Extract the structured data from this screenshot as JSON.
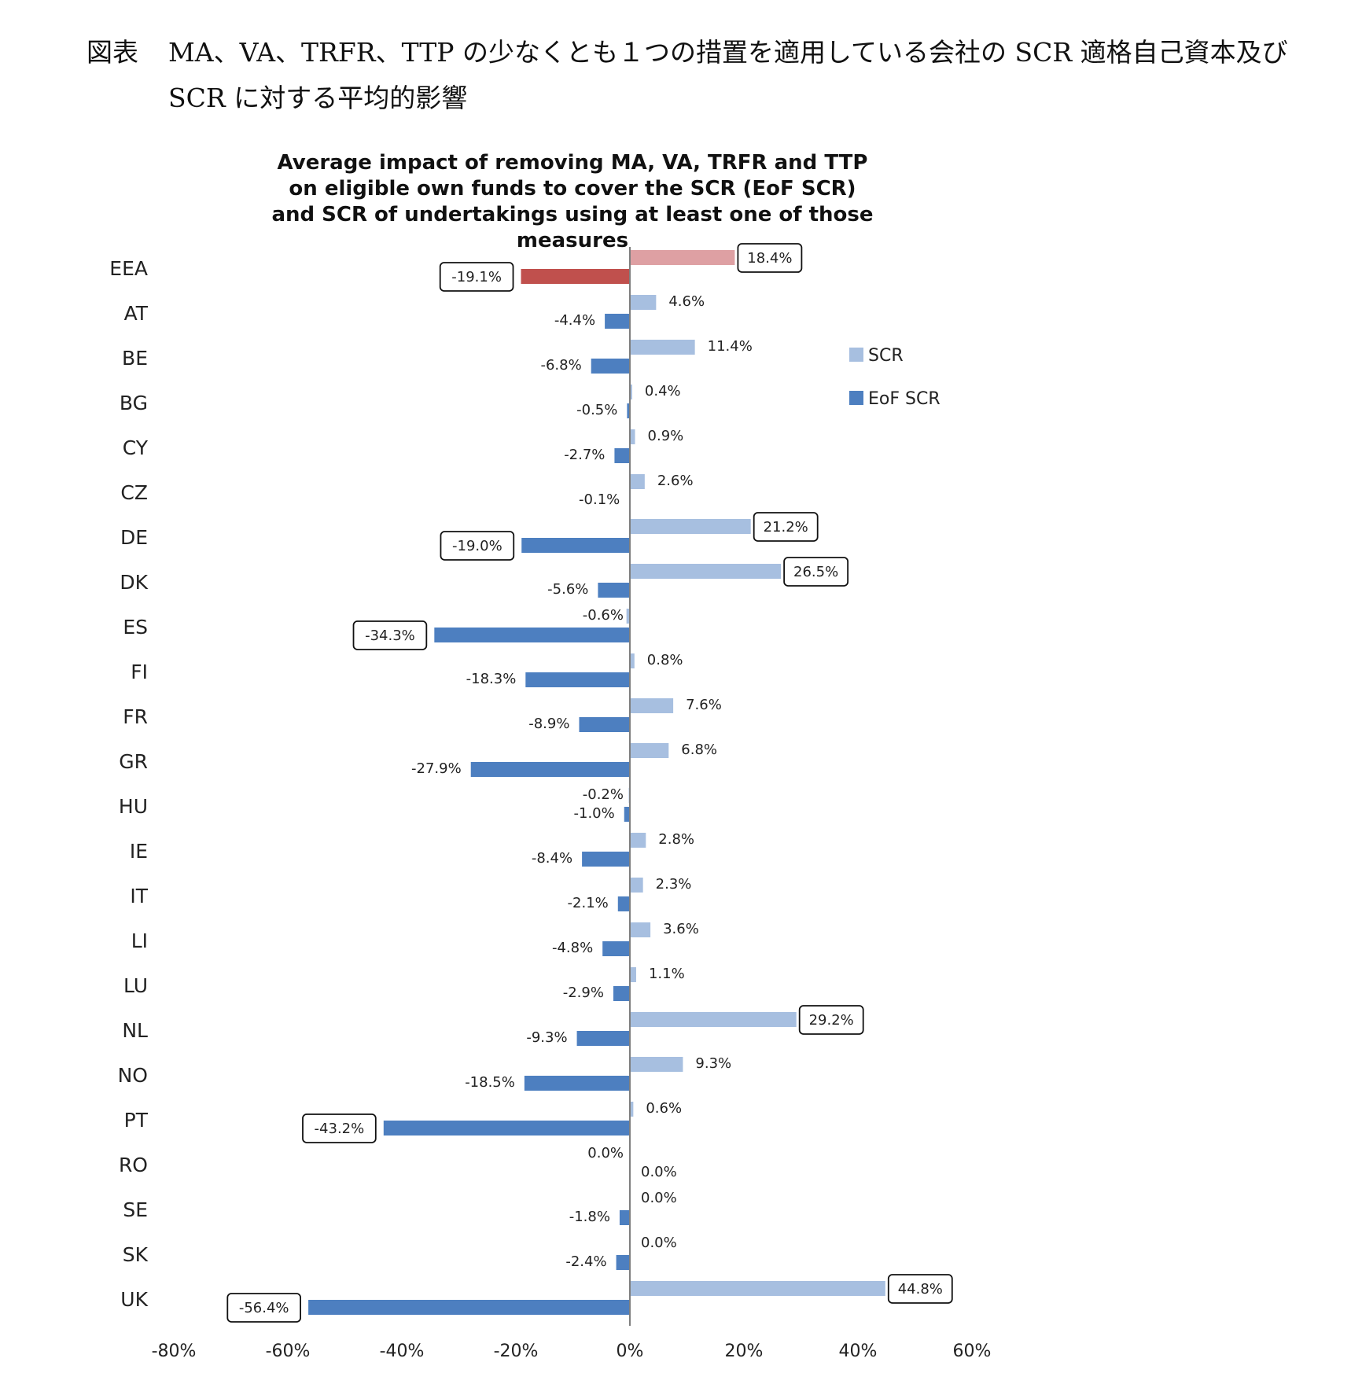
{
  "caption": {
    "label": "図表",
    "text": "MA、VA、TRFR、TTP の少なくとも１つの措置を適用している会社の SCR 適格自己資本及び SCR に対する平均的影響"
  },
  "chart_data": {
    "type": "bar",
    "orientation": "horizontal",
    "title_lines": [
      "Average impact of removing MA, VA, TRFR and TTP",
      "on eligible own funds to cover the SCR (EoF SCR)",
      "and SCR of undertakings using at least one of those",
      "measures"
    ],
    "categories": [
      "EEA",
      "AT",
      "BE",
      "BG",
      "CY",
      "CZ",
      "DE",
      "DK",
      "ES",
      "FI",
      "FR",
      "GR",
      "HU",
      "IE",
      "IT",
      "LI",
      "LU",
      "NL",
      "NO",
      "PT",
      "RO",
      "SE",
      "SK",
      "UK"
    ],
    "series": [
      {
        "name": "SCR",
        "color": "#a7bfe0",
        "highlight_color": "#dea0a3",
        "values": [
          18.4,
          4.6,
          11.4,
          0.4,
          0.9,
          2.6,
          21.2,
          26.5,
          -0.6,
          0.8,
          7.6,
          6.8,
          -0.2,
          2.8,
          2.3,
          3.6,
          1.1,
          29.2,
          9.3,
          0.6,
          0.0,
          0.0,
          0.0,
          44.8
        ],
        "labels": [
          "18.4%",
          "4.6%",
          "11.4%",
          "0.4%",
          "0.9%",
          "2.6%",
          "21.2%",
          "26.5%",
          "-0.6%",
          "0.8%",
          "7.6%",
          "6.8%",
          "-0.2%",
          "2.8%",
          "2.3%",
          "3.6%",
          "1.1%",
          "29.2%",
          "9.3%",
          "0.6%",
          "0.0%",
          "0.0%",
          "0.0%",
          "44.8%"
        ]
      },
      {
        "name": "EoF SCR",
        "color": "#4d7fc0",
        "highlight_color": "#c0504d",
        "values": [
          -19.1,
          -4.4,
          -6.8,
          -0.5,
          -2.7,
          -0.1,
          -19.0,
          -5.6,
          -34.3,
          -18.3,
          -8.9,
          -27.9,
          -1.0,
          -8.4,
          -2.1,
          -4.8,
          -2.9,
          -9.3,
          -18.5,
          -43.2,
          0.0,
          -1.8,
          -2.4,
          -56.4
        ],
        "labels": [
          "-19.1%",
          "-4.4%",
          "-6.8%",
          "-0.5%",
          "-2.7%",
          "-0.1%",
          "-19.0%",
          "-5.6%",
          "-34.3%",
          "-18.3%",
          "-8.9%",
          "-27.9%",
          "-1.0%",
          "-8.4%",
          "-2.1%",
          "-4.8%",
          "-2.9%",
          "-9.3%",
          "-18.5%",
          "-43.2%",
          "0.0%",
          "-1.8%",
          "-2.4%",
          "-56.4%"
        ]
      }
    ],
    "highlight_category": "EEA",
    "boxed_labels": {
      "SCR": [
        "EEA",
        "DE",
        "DK",
        "NL",
        "UK"
      ],
      "EoF SCR": [
        "EEA",
        "DE",
        "ES",
        "PT",
        "UK"
      ]
    },
    "xlim": [
      -80,
      60
    ],
    "xticks": [
      -80,
      -60,
      -40,
      -20,
      0,
      20,
      40,
      60
    ],
    "xtick_labels": [
      "-80%",
      "-60%",
      "-40%",
      "-20%",
      "0%",
      "20%",
      "40%",
      "60%"
    ],
    "legend": {
      "position": "right",
      "entries": [
        "SCR",
        "EoF SCR"
      ]
    },
    "grid": false
  }
}
